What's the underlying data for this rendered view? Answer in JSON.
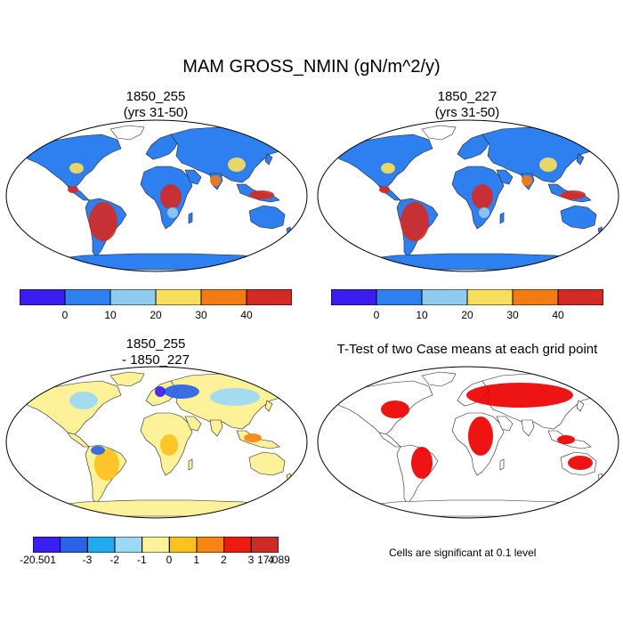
{
  "title": "MAM GROSS_NMIN (gN/m^2/y)",
  "panels": [
    {
      "title_line1": "1850_255",
      "title_line2": "(yrs 31-50)"
    },
    {
      "title_line1": "1850_227",
      "title_line2": "(yrs 31-50)"
    },
    {
      "title_line1": "1850_255",
      "title_line2": "- 1850_227"
    },
    {
      "title_line1": "T-Test of two Case means at each grid point",
      "title_line2": ""
    }
  ],
  "colorbar_main": {
    "colors": [
      "#3b1df0",
      "#2e7ff0",
      "#8ecbef",
      "#f9dd5c",
      "#f47a12",
      "#d42a26"
    ],
    "labels": [
      "0",
      "10",
      "20",
      "30",
      "40"
    ]
  },
  "colorbar_diff": {
    "colors": [
      "#3a1ef2",
      "#2a62e8",
      "#20aaf0",
      "#9dd9f6",
      "#fdf29a",
      "#fdc11e",
      "#f78514",
      "#ee1c10",
      "#cf2b26"
    ],
    "labels": [
      "-20.501",
      "-3",
      "-2",
      "-1",
      "0",
      "1",
      "2",
      "3",
      "4",
      "17.089"
    ]
  },
  "ttest_note": "Cells are significant at 0.1 level",
  "colors": {
    "ocean": "#ffffff",
    "land_base": "#2e7ff0",
    "tropics_high": "#d42a26",
    "mid_yellow": "#f9dd5c",
    "diff_base": "#fdf29a",
    "significant": "#ee0000",
    "antarctica_main": "#2e7ff0",
    "antarctica_diff": "#fdf29a"
  }
}
